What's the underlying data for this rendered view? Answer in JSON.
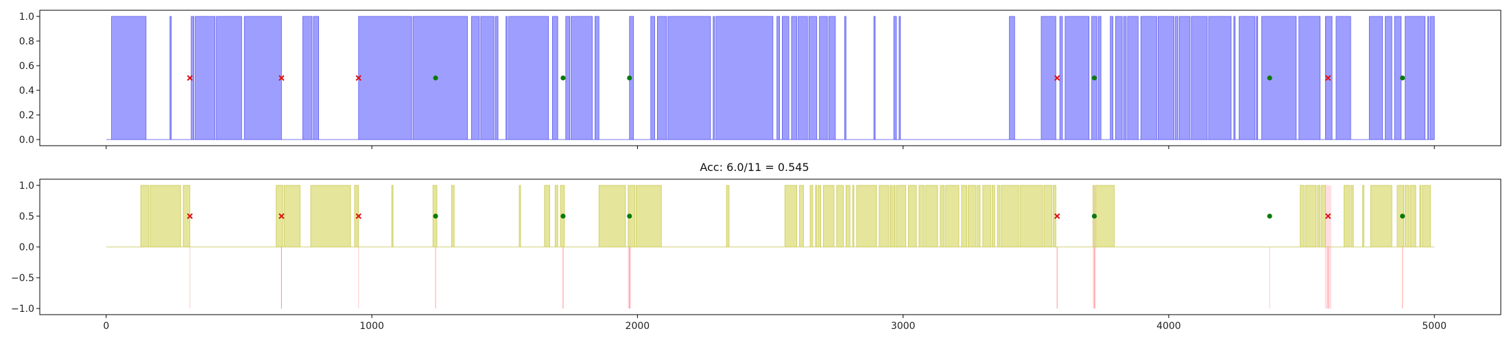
{
  "chart_data": [
    {
      "type": "area",
      "title": "",
      "xlabel": "",
      "ylabel": "",
      "xlim": [
        -250,
        5250
      ],
      "ylim": [
        -0.05,
        1.05
      ],
      "grid": false,
      "x_ticks": [
        0,
        1000,
        2000,
        3000,
        4000,
        5000
      ],
      "show_x_tick_labels": false,
      "y_ticks": [
        0.0,
        0.2,
        0.4,
        0.6,
        0.8,
        1.0
      ],
      "y_tick_labels": [
        "0.0",
        "0.2",
        "0.4",
        "0.6",
        "0.8",
        "1.0"
      ],
      "fill_color": "#9999ff",
      "line_color": "#5555ee",
      "segments": [
        [
          20,
          150
        ],
        [
          240,
          245
        ],
        [
          320,
          330
        ],
        [
          335,
          410
        ],
        [
          415,
          510
        ],
        [
          520,
          660
        ],
        [
          740,
          775
        ],
        [
          780,
          800
        ],
        [
          950,
          1150
        ],
        [
          1155,
          1360
        ],
        [
          1375,
          1405
        ],
        [
          1410,
          1460
        ],
        [
          1465,
          1475
        ],
        [
          1505,
          1510
        ],
        [
          1515,
          1665
        ],
        [
          1680,
          1700
        ],
        [
          1730,
          1745
        ],
        [
          1750,
          1830
        ],
        [
          1840,
          1855
        ],
        [
          1970,
          1985
        ],
        [
          2050,
          2065
        ],
        [
          2075,
          2110
        ],
        [
          2115,
          2275
        ],
        [
          2285,
          2290
        ],
        [
          2295,
          2510
        ],
        [
          2525,
          2535
        ],
        [
          2545,
          2570
        ],
        [
          2580,
          2600
        ],
        [
          2605,
          2640
        ],
        [
          2645,
          2675
        ],
        [
          2685,
          2715
        ],
        [
          2720,
          2745
        ],
        [
          2780,
          2785
        ],
        [
          2890,
          2895
        ],
        [
          2965,
          2975
        ],
        [
          2985,
          2990
        ],
        [
          3400,
          3420
        ],
        [
          3520,
          3575
        ],
        [
          3590,
          3600
        ],
        [
          3610,
          3700
        ],
        [
          3710,
          3730
        ],
        [
          3735,
          3745
        ],
        [
          3780,
          3790
        ],
        [
          3800,
          3825
        ],
        [
          3830,
          3840
        ],
        [
          3845,
          3885
        ],
        [
          3895,
          3955
        ],
        [
          3960,
          4020
        ],
        [
          4025,
          4035
        ],
        [
          4040,
          4080
        ],
        [
          4085,
          4145
        ],
        [
          4150,
          4235
        ],
        [
          4245,
          4250
        ],
        [
          4265,
          4325
        ],
        [
          4330,
          4335
        ],
        [
          4350,
          4480
        ],
        [
          4490,
          4570
        ],
        [
          4590,
          4615
        ],
        [
          4630,
          4685
        ],
        [
          4755,
          4805
        ],
        [
          4815,
          4840
        ],
        [
          4850,
          4875
        ],
        [
          4890,
          4965
        ],
        [
          4975,
          4980
        ],
        [
          4985,
          5000
        ]
      ],
      "series_end": 5000,
      "markers": [
        {
          "x": 315,
          "y": 0.5,
          "correct": false
        },
        {
          "x": 660,
          "y": 0.5,
          "correct": false
        },
        {
          "x": 950,
          "y": 0.5,
          "correct": false
        },
        {
          "x": 1240,
          "y": 0.5,
          "correct": true
        },
        {
          "x": 1720,
          "y": 0.5,
          "correct": true
        },
        {
          "x": 1970,
          "y": 0.5,
          "correct": true
        },
        {
          "x": 3580,
          "y": 0.5,
          "correct": false
        },
        {
          "x": 3720,
          "y": 0.5,
          "correct": true
        },
        {
          "x": 4380,
          "y": 0.5,
          "correct": true
        },
        {
          "x": 4600,
          "y": 0.5,
          "correct": false
        },
        {
          "x": 4880,
          "y": 0.5,
          "correct": true
        }
      ],
      "highlight_bands": [
        [
          4588,
          4612
        ]
      ],
      "highlight_color": "#ffc8d0"
    },
    {
      "type": "area",
      "title": "Acc: 6.0/11 = 0.545",
      "xlabel": "",
      "ylabel": "",
      "xlim": [
        -250,
        5250
      ],
      "ylim": [
        -1.1,
        1.1
      ],
      "grid": false,
      "x_ticks": [
        0,
        1000,
        2000,
        3000,
        4000,
        5000
      ],
      "x_tick_labels": [
        "0",
        "1000",
        "2000",
        "3000",
        "4000",
        "5000"
      ],
      "show_x_tick_labels": true,
      "y_ticks": [
        -1.0,
        -0.5,
        0.0,
        0.5,
        1.0
      ],
      "y_tick_labels": [
        "−1.0",
        "−0.5",
        "0.0",
        "0.5",
        "1.0"
      ],
      "fill_color": "#e4e496",
      "line_color": "#c8c850",
      "segments": [
        [
          130,
          160
        ],
        [
          165,
          280
        ],
        [
          290,
          315
        ],
        [
          640,
          665
        ],
        [
          670,
          730
        ],
        [
          770,
          920
        ],
        [
          935,
          950
        ],
        [
          1075,
          1080
        ],
        [
          1230,
          1245
        ],
        [
          1300,
          1310
        ],
        [
          1555,
          1560
        ],
        [
          1650,
          1670
        ],
        [
          1690,
          1700
        ],
        [
          1710,
          1725
        ],
        [
          1855,
          1955
        ],
        [
          1965,
          1990
        ],
        [
          1995,
          2090
        ],
        [
          2335,
          2345
        ],
        [
          2555,
          2600
        ],
        [
          2610,
          2625
        ],
        [
          2650,
          2660
        ],
        [
          2670,
          2675
        ],
        [
          2680,
          2690
        ],
        [
          2700,
          2740
        ],
        [
          2750,
          2775
        ],
        [
          2785,
          2800
        ],
        [
          2810,
          2815
        ],
        [
          2825,
          2900
        ],
        [
          2910,
          2945
        ],
        [
          2950,
          2960
        ],
        [
          2965,
          2970
        ],
        [
          2975,
          3010
        ],
        [
          3020,
          3050
        ],
        [
          3060,
          3080
        ],
        [
          3085,
          3130
        ],
        [
          3140,
          3155
        ],
        [
          3160,
          3210
        ],
        [
          3220,
          3240
        ],
        [
          3245,
          3275
        ],
        [
          3280,
          3290
        ],
        [
          3300,
          3330
        ],
        [
          3335,
          3345
        ],
        [
          3355,
          3365
        ],
        [
          3370,
          3435
        ],
        [
          3440,
          3525
        ],
        [
          3530,
          3560
        ],
        [
          3565,
          3575
        ],
        [
          3715,
          3720
        ],
        [
          3725,
          3795
        ],
        [
          4495,
          4510
        ],
        [
          4515,
          4555
        ],
        [
          4560,
          4570
        ],
        [
          4575,
          4590
        ],
        [
          4660,
          4680
        ],
        [
          4685,
          4695
        ],
        [
          4730,
          4735
        ],
        [
          4760,
          4840
        ],
        [
          4860,
          4885
        ],
        [
          4890,
          4905
        ],
        [
          4910,
          4930
        ],
        [
          4945,
          4950
        ],
        [
          4955,
          4985
        ]
      ],
      "series_end": 5000,
      "markers": [
        {
          "x": 315,
          "y": 0.5,
          "correct": false
        },
        {
          "x": 660,
          "y": 0.5,
          "correct": false
        },
        {
          "x": 950,
          "y": 0.5,
          "correct": false
        },
        {
          "x": 1240,
          "y": 0.5,
          "correct": true
        },
        {
          "x": 1720,
          "y": 0.5,
          "correct": true
        },
        {
          "x": 1970,
          "y": 0.5,
          "correct": true
        },
        {
          "x": 3580,
          "y": 0.5,
          "correct": false
        },
        {
          "x": 3720,
          "y": 0.5,
          "correct": true
        },
        {
          "x": 4380,
          "y": 0.5,
          "correct": true
        },
        {
          "x": 4600,
          "y": 0.5,
          "correct": false
        },
        {
          "x": 4880,
          "y": 0.5,
          "correct": true
        }
      ],
      "highlight_bands": [
        [
          1964,
          1976
        ],
        [
          3714,
          3726
        ],
        [
          4588,
          4612
        ]
      ],
      "highlight_color": "#ffc8d0",
      "event_lines": [
        {
          "x": 315,
          "opacity": 0.35
        },
        {
          "x": 660,
          "opacity": 0.8
        },
        {
          "x": 950,
          "opacity": 0.35
        },
        {
          "x": 1240,
          "opacity": 0.6
        },
        {
          "x": 1720,
          "opacity": 0.7
        },
        {
          "x": 1970,
          "opacity": 0.8
        },
        {
          "x": 3580,
          "opacity": 0.7
        },
        {
          "x": 3720,
          "opacity": 0.7
        },
        {
          "x": 4380,
          "opacity": 0.35
        },
        {
          "x": 4600,
          "opacity": 0.6
        },
        {
          "x": 4880,
          "opacity": 0.6
        }
      ],
      "event_line_color": "#ff8080",
      "event_line_bottom": -1.0
    }
  ],
  "style": {
    "correct_marker_color": "#0a7a0a",
    "wrong_marker_color": "#e01010",
    "axis_color": "#000000"
  }
}
